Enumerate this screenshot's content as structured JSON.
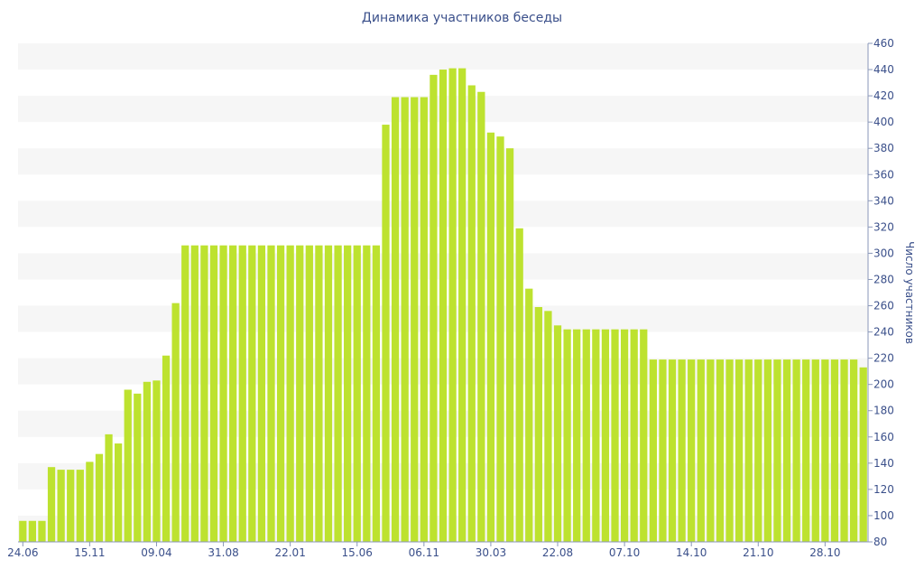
{
  "chart_data": {
    "type": "bar",
    "title": "Динамика участников беседы",
    "xlabel": "",
    "ylabel": "Число участников",
    "ylim": [
      80,
      460
    ],
    "yticks": [
      80,
      100,
      120,
      140,
      160,
      180,
      200,
      220,
      240,
      260,
      280,
      300,
      320,
      340,
      360,
      380,
      400,
      420,
      440,
      460
    ],
    "y_axis_position": "right",
    "grid": "alternating horizontal bands",
    "bar_color": "#bde22f",
    "x_tick_labels": [
      {
        "label": "24.06",
        "index": 0
      },
      {
        "label": "15.11",
        "index": 7
      },
      {
        "label": "09.04",
        "index": 14
      },
      {
        "label": "31.08",
        "index": 21
      },
      {
        "label": "22.01",
        "index": 28
      },
      {
        "label": "15.06",
        "index": 35
      },
      {
        "label": "06.11",
        "index": 42
      },
      {
        "label": "30.03",
        "index": 49
      },
      {
        "label": "22.08",
        "index": 56
      },
      {
        "label": "07.10",
        "index": 63
      },
      {
        "label": "14.10",
        "index": 70
      },
      {
        "label": "21.10",
        "index": 77
      },
      {
        "label": "28.10",
        "index": 84
      }
    ],
    "values": [
      96,
      96,
      96,
      137,
      135,
      135,
      135,
      141,
      147,
      162,
      155,
      196,
      193,
      202,
      203,
      222,
      262,
      306,
      306,
      306,
      306,
      306,
      306,
      306,
      306,
      306,
      306,
      306,
      306,
      306,
      306,
      306,
      306,
      306,
      306,
      306,
      306,
      306,
      398,
      419,
      419,
      419,
      419,
      436,
      440,
      441,
      441,
      428,
      423,
      392,
      389,
      380,
      319,
      273,
      259,
      256,
      245,
      242,
      242,
      242,
      242,
      242,
      242,
      242,
      242,
      242,
      219,
      219,
      219,
      219,
      219,
      219,
      219,
      219,
      219,
      219,
      219,
      219,
      219,
      219,
      219,
      219,
      219,
      219,
      219,
      219,
      219,
      219,
      213
    ]
  }
}
